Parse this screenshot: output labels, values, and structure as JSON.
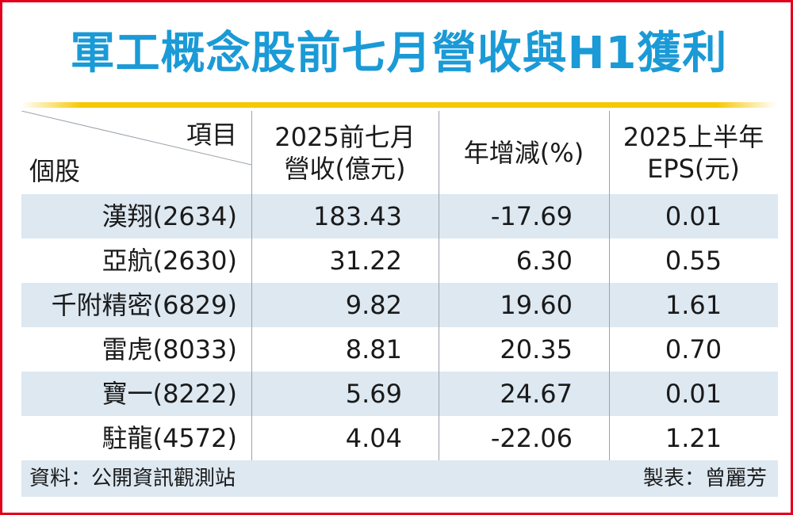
{
  "title": "軍工概念股前七月營收與H1獲利",
  "header": {
    "item_label": "項目",
    "stock_label": "個股",
    "col1_line1": "2025前七月",
    "col1_line2": "營收(億元)",
    "col2": "年增減(%)",
    "col3_line1": "2025上半年",
    "col3_line2": "EPS(元)"
  },
  "rows": [
    {
      "name": "漢翔(2634)",
      "revenue": "183.43",
      "yoy": "-17.69",
      "eps": "0.01"
    },
    {
      "name": "亞航(2630)",
      "revenue": "31.22",
      "yoy": "6.30",
      "eps": "0.55"
    },
    {
      "name": "千附精密(6829)",
      "revenue": "9.82",
      "yoy": "19.60",
      "eps": "1.61"
    },
    {
      "name": "雷虎(8033)",
      "revenue": "8.81",
      "yoy": "20.35",
      "eps": "0.70"
    },
    {
      "name": "寶一(8222)",
      "revenue": "5.69",
      "yoy": "24.67",
      "eps": "0.01"
    },
    {
      "name": "駐龍(4572)",
      "revenue": "4.04",
      "yoy": "-22.06",
      "eps": "1.21"
    }
  ],
  "footer": {
    "source": "資料：公開資訊觀測站",
    "maker": "製表：曾麗芳"
  },
  "colors": {
    "title": "#1a9ad6",
    "frame": "#e2001a",
    "rule": "#f6c800",
    "row_shade": "#dde8f1"
  }
}
